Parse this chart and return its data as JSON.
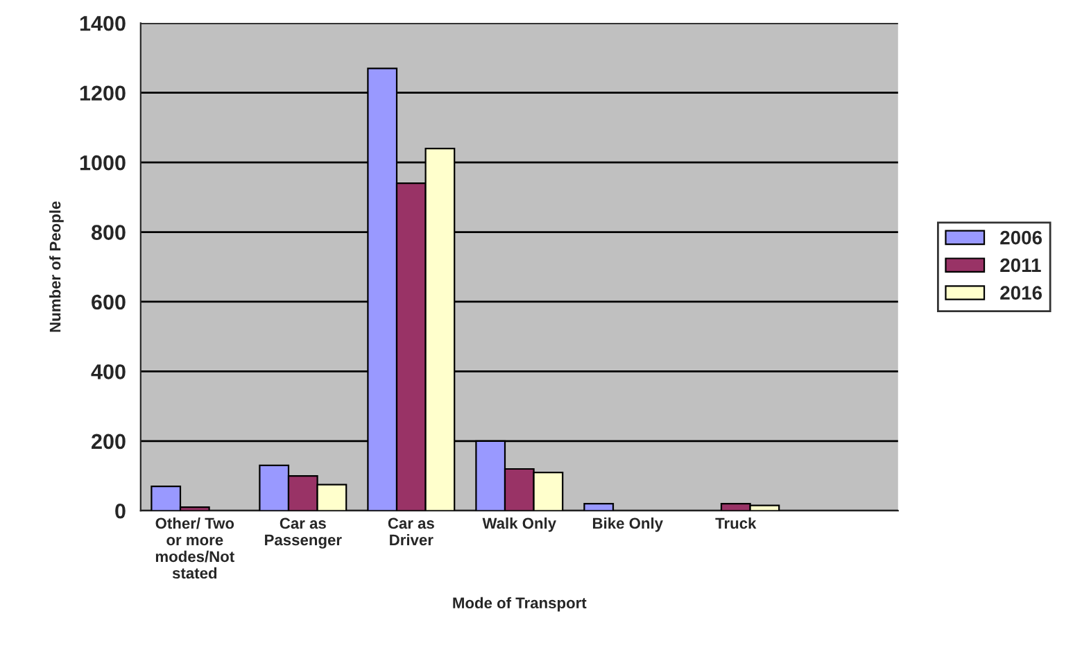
{
  "chart_data": {
    "type": "bar",
    "xlabel": "Mode of Transport",
    "ylabel": "Number of People",
    "categories": [
      "Other/ Two\nor more\nmodes/Not\nstated",
      "Car as\nPassenger",
      "Car as\nDriver",
      "Walk Only",
      "Bike Only",
      "Truck",
      null
    ],
    "series": [
      {
        "name": "2006",
        "color": "#9999ff",
        "values": [
          70,
          130,
          1270,
          200,
          20,
          null,
          null
        ]
      },
      {
        "name": "2011",
        "color": "#993366",
        "values": [
          10,
          100,
          940,
          120,
          null,
          20,
          null
        ]
      },
      {
        "name": "2016",
        "color": "#ffffcc",
        "values": [
          null,
          75,
          1040,
          110,
          null,
          15,
          null
        ]
      }
    ],
    "ylim": [
      0,
      1400
    ],
    "yticks": [
      0,
      200,
      400,
      600,
      800,
      1000,
      1200,
      1400
    ],
    "grid": "y",
    "legend": "right"
  }
}
